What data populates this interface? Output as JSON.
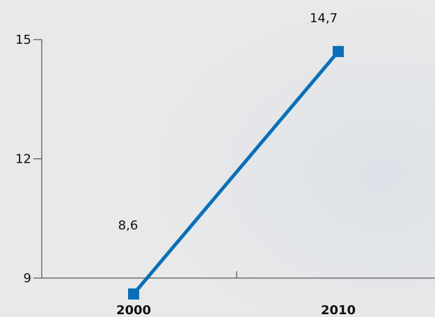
{
  "chart_data": {
    "type": "line",
    "title": "",
    "xlabel": "",
    "ylabel": "",
    "categories": [
      "2000",
      "2010"
    ],
    "series": [
      {
        "values": [
          8.6,
          14.7
        ],
        "color": "#0a6fb8",
        "data_labels": [
          "8,6",
          "14,7"
        ]
      }
    ],
    "ylim": [
      9,
      15
    ],
    "yticks": [
      9,
      12,
      15
    ],
    "ytick_labels": [
      "9",
      "12",
      "15"
    ],
    "grid": false,
    "legend": "none",
    "axis_color": "#333333",
    "background_color": "#e9e9e9"
  }
}
